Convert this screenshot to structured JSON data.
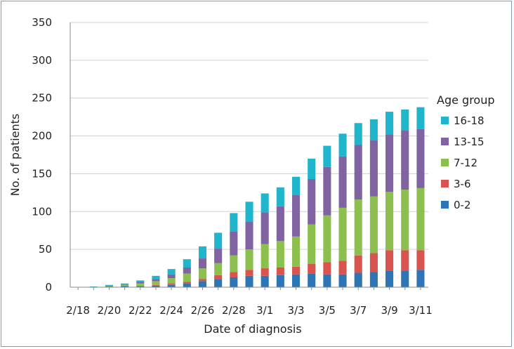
{
  "chart_data": {
    "type": "bar",
    "stacked": true,
    "xlabel": "Date of diagnosis",
    "ylabel": "No. of patients",
    "ylim": [
      0,
      350
    ],
    "yticks": [
      0,
      50,
      100,
      150,
      200,
      250,
      300,
      350
    ],
    "grid": "horizontal",
    "legend_title": "Age group",
    "legend_position": "right",
    "categories": [
      "2/18",
      "2/19",
      "2/20",
      "2/21",
      "2/22",
      "2/23",
      "2/24",
      "2/25",
      "2/26",
      "2/27",
      "2/28",
      "2/29",
      "3/1",
      "3/2",
      "3/3",
      "3/4",
      "3/5",
      "3/6",
      "3/7",
      "3/8",
      "3/9",
      "3/10",
      "3/11"
    ],
    "xtick_labels": [
      "2/18",
      "2/20",
      "2/22",
      "2/24",
      "2/26",
      "2/28",
      "3/1",
      "3/3",
      "3/5",
      "3/7",
      "3/9",
      "3/11"
    ],
    "series": [
      {
        "name": "0-2",
        "color": "#2e75b6",
        "values": [
          0,
          0,
          0,
          1,
          1,
          2,
          3,
          5,
          8,
          11,
          13,
          15,
          15,
          16,
          17,
          18,
          17,
          17,
          19,
          20,
          22,
          22,
          23
        ]
      },
      {
        "name": "3-6",
        "color": "#d9534f",
        "values": [
          0,
          0,
          0,
          1,
          1,
          1,
          2,
          2,
          3,
          5,
          7,
          8,
          10,
          10,
          10,
          13,
          16,
          18,
          23,
          25,
          27,
          27,
          26
        ]
      },
      {
        "name": "7-12",
        "color": "#8cbf4e",
        "values": [
          0,
          0,
          1,
          1,
          3,
          5,
          7,
          11,
          14,
          16,
          22,
          27,
          32,
          35,
          40,
          52,
          62,
          70,
          74,
          75,
          77,
          80,
          82
        ]
      },
      {
        "name": "13-15",
        "color": "#8064a2",
        "values": [
          0,
          0,
          1,
          1,
          2,
          3,
          5,
          8,
          13,
          19,
          32,
          37,
          42,
          46,
          55,
          60,
          64,
          68,
          72,
          74,
          76,
          78,
          78
        ]
      },
      {
        "name": "16-18",
        "color": "#1fb5cc",
        "values": [
          0,
          1,
          1,
          1,
          2,
          4,
          7,
          11,
          16,
          21,
          24,
          26,
          25,
          25,
          24,
          27,
          28,
          30,
          29,
          28,
          30,
          28,
          29
        ]
      }
    ]
  }
}
